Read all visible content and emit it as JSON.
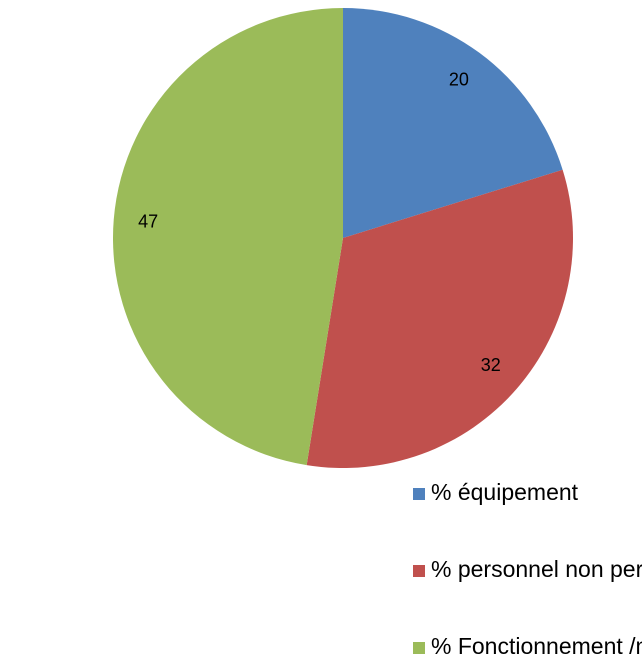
{
  "chart_data": {
    "type": "pie",
    "categories": [
      "% équipement",
      "% personnel non permament",
      "% Fonctionnement /missions /sous-traitance"
    ],
    "values": [
      20,
      32,
      47
    ],
    "colors": [
      "#4f81bd",
      "#c0504d",
      "#9bbb59"
    ],
    "legend": "bottom"
  }
}
